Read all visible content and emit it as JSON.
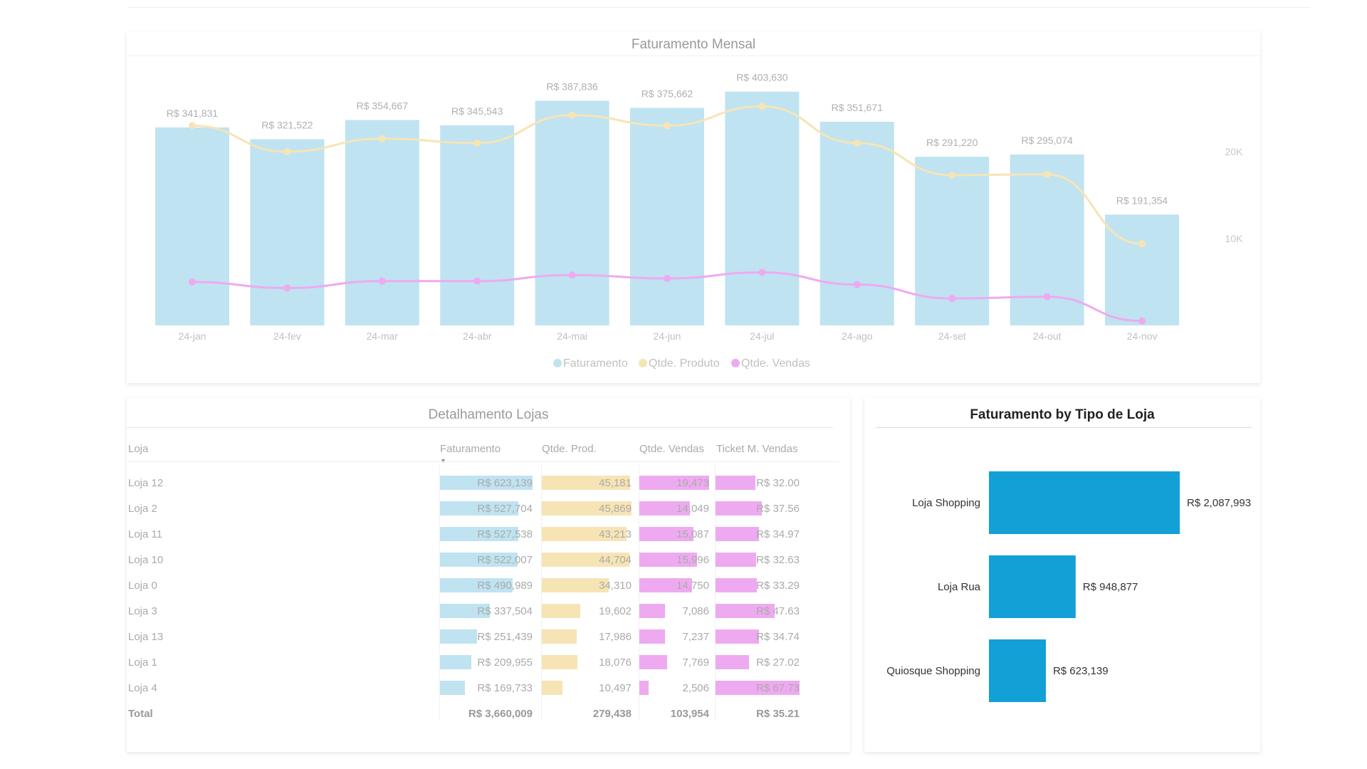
{
  "chart_data": [
    {
      "type": "bar",
      "title": "Faturamento Mensal",
      "categories": [
        "24-jan",
        "24-fev",
        "24-mar",
        "24-abr",
        "24-mai",
        "24-jun",
        "24-jul",
        "24-ago",
        "24-set",
        "24-out",
        "24-nov"
      ],
      "series": [
        {
          "name": "Faturamento",
          "values": [
            341831,
            321522,
            354667,
            345543,
            387836,
            375662,
            403630,
            351671,
            291220,
            295074,
            191354
          ],
          "labels": [
            "R$ 341,831",
            "R$ 321,522",
            "R$ 354,667",
            "R$ 345,543",
            "R$ 387,836",
            "R$ 375,662",
            "R$ 403,630",
            "R$ 351,671",
            "R$ 291,220",
            "R$ 295,074",
            "R$ 191,354"
          ]
        },
        {
          "name": "Qtde. Produto",
          "values": [
            23000,
            20000,
            21500,
            21000,
            24200,
            23000,
            25200,
            21000,
            17300,
            17400,
            9400
          ]
        },
        {
          "name": "Qtde. Vendas",
          "values": [
            5000,
            4300,
            5100,
            5100,
            5800,
            5400,
            6100,
            4700,
            3100,
            3300,
            500
          ]
        }
      ],
      "y2_ticks": [
        "10K",
        "20K"
      ],
      "y2lim": [
        0,
        30000
      ],
      "ylim": [
        0,
        450000
      ],
      "colors": {
        "Faturamento": "#bfe3f1",
        "Qtde. Produto": "#f7e4b5",
        "Qtde. Vendas": "#eeaaf0"
      },
      "legend": "bottom-center"
    },
    {
      "type": "table",
      "title": "Detalhamento Lojas",
      "columns": [
        "Loja",
        "Faturamento",
        "Qtde. Prod.",
        "Qtde. Vendas",
        "Ticket M. Vendas"
      ],
      "rows": [
        {
          "loja": "Loja 12",
          "fat": 623139,
          "fat_label": "R$ 623,139",
          "prod": 45181,
          "prod_label": "45,181",
          "vendas": 19473,
          "vendas_label": "19,473",
          "ticket": 32.0,
          "ticket_label": "R$ 32.00"
        },
        {
          "loja": "Loja 2",
          "fat": 527704,
          "fat_label": "R$ 527,704",
          "prod": 45869,
          "prod_label": "45,869",
          "vendas": 14049,
          "vendas_label": "14,049",
          "ticket": 37.56,
          "ticket_label": "R$ 37.56"
        },
        {
          "loja": "Loja 11",
          "fat": 527538,
          "fat_label": "R$ 527,538",
          "prod": 43213,
          "prod_label": "43,213",
          "vendas": 15087,
          "vendas_label": "15,087",
          "ticket": 34.97,
          "ticket_label": "R$ 34.97"
        },
        {
          "loja": "Loja 10",
          "fat": 522007,
          "fat_label": "R$ 522,007",
          "prod": 44704,
          "prod_label": "44,704",
          "vendas": 15996,
          "vendas_label": "15,996",
          "ticket": 32.63,
          "ticket_label": "R$ 32.63"
        },
        {
          "loja": "Loja 0",
          "fat": 490989,
          "fat_label": "R$ 490,989",
          "prod": 34310,
          "prod_label": "34,310",
          "vendas": 14750,
          "vendas_label": "14,750",
          "ticket": 33.29,
          "ticket_label": "R$ 33.29"
        },
        {
          "loja": "Loja 3",
          "fat": 337504,
          "fat_label": "R$ 337,504",
          "prod": 19602,
          "prod_label": "19,602",
          "vendas": 7086,
          "vendas_label": "7,086",
          "ticket": 47.63,
          "ticket_label": "R$ 47.63"
        },
        {
          "loja": "Loja 13",
          "fat": 251439,
          "fat_label": "R$ 251,439",
          "prod": 17986,
          "prod_label": "17,986",
          "vendas": 7237,
          "vendas_label": "7,237",
          "ticket": 34.74,
          "ticket_label": "R$ 34.74"
        },
        {
          "loja": "Loja 1",
          "fat": 209955,
          "fat_label": "R$ 209,955",
          "prod": 18076,
          "prod_label": "18,076",
          "vendas": 7769,
          "vendas_label": "7,769",
          "ticket": 27.02,
          "ticket_label": "R$ 27.02"
        },
        {
          "loja": "Loja 4",
          "fat": 169733,
          "fat_label": "R$ 169,733",
          "prod": 10497,
          "prod_label": "10,497",
          "vendas": 2506,
          "vendas_label": "2,506",
          "ticket": 67.73,
          "ticket_label": "R$ 67.73"
        }
      ],
      "total": {
        "label": "Total",
        "fat_label": "R$ 3,660,009",
        "prod_label": "279,438",
        "vendas_label": "103,954",
        "ticket_label": "R$ 35.21"
      },
      "colors": {
        "fat": "#bfe3f1",
        "prod": "#f7e4b5",
        "vendas": "#eeaaf0",
        "ticket": "#eeaaf0"
      }
    },
    {
      "type": "bar",
      "orientation": "horizontal",
      "title": "Faturamento by Tipo de Loja",
      "categories": [
        "Loja Shopping",
        "Loja Rua",
        "Quiosque Shopping"
      ],
      "values": [
        2087993,
        948877,
        623139
      ],
      "labels": [
        "R$ 2,087,993",
        "R$ 948,877",
        "R$ 623,139"
      ],
      "color": "#12a0d7"
    }
  ]
}
